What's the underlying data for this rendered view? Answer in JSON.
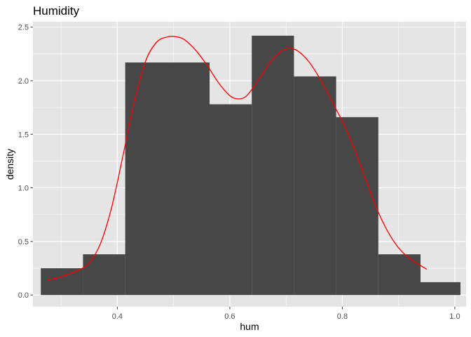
{
  "chart_data": {
    "type": "bar",
    "title": "Humidity",
    "xlabel": "hum",
    "ylabel": "density",
    "xlim": [
      0.25,
      1.02
    ],
    "ylim": [
      -0.11,
      2.55
    ],
    "x_ticks": [
      0.4,
      0.6,
      0.8,
      1.0
    ],
    "x_tick_labels": [
      "0.4",
      "0.6",
      "0.8",
      "1.0"
    ],
    "y_ticks": [
      0.0,
      0.5,
      1.0,
      1.5,
      2.0,
      2.5
    ],
    "y_tick_labels": [
      "0.0",
      "0.5",
      "1.0",
      "1.5",
      "2.0",
      "2.5"
    ],
    "grid": true,
    "colors": {
      "panel": "#e5e5e5",
      "grid": "#ffffff",
      "bars": "#474747",
      "density": "#ff0000"
    },
    "series": [
      {
        "kind": "histogram",
        "bins": [
          {
            "x0": 0.264,
            "x1": 0.339,
            "density": 0.25
          },
          {
            "x0": 0.339,
            "x1": 0.414,
            "density": 0.38
          },
          {
            "x0": 0.414,
            "x1": 0.564,
            "density": 2.17
          },
          {
            "x0": 0.564,
            "x1": 0.639,
            "density": 1.78
          },
          {
            "x0": 0.639,
            "x1": 0.714,
            "density": 2.42
          },
          {
            "x0": 0.714,
            "x1": 0.789,
            "density": 2.04
          },
          {
            "x0": 0.789,
            "x1": 0.864,
            "density": 1.66
          },
          {
            "x0": 0.864,
            "x1": 0.939,
            "density": 0.38
          },
          {
            "x0": 0.939,
            "x1": 1.01,
            "density": 0.12
          }
        ]
      },
      {
        "kind": "density",
        "x": [
          0.275,
          0.3,
          0.33,
          0.35,
          0.37,
          0.39,
          0.41,
          0.43,
          0.45,
          0.47,
          0.49,
          0.505,
          0.52,
          0.54,
          0.56,
          0.58,
          0.6,
          0.615,
          0.63,
          0.65,
          0.67,
          0.69,
          0.705,
          0.72,
          0.74,
          0.76,
          0.78,
          0.8,
          0.82,
          0.84,
          0.86,
          0.88,
          0.9,
          0.92,
          0.95
        ],
        "y": [
          0.14,
          0.17,
          0.23,
          0.3,
          0.48,
          0.82,
          1.3,
          1.8,
          2.18,
          2.36,
          2.41,
          2.41,
          2.38,
          2.28,
          2.14,
          1.98,
          1.86,
          1.83,
          1.86,
          2.0,
          2.16,
          2.27,
          2.3,
          2.28,
          2.18,
          2.02,
          1.82,
          1.62,
          1.38,
          1.1,
          0.82,
          0.6,
          0.44,
          0.34,
          0.24
        ]
      }
    ]
  }
}
